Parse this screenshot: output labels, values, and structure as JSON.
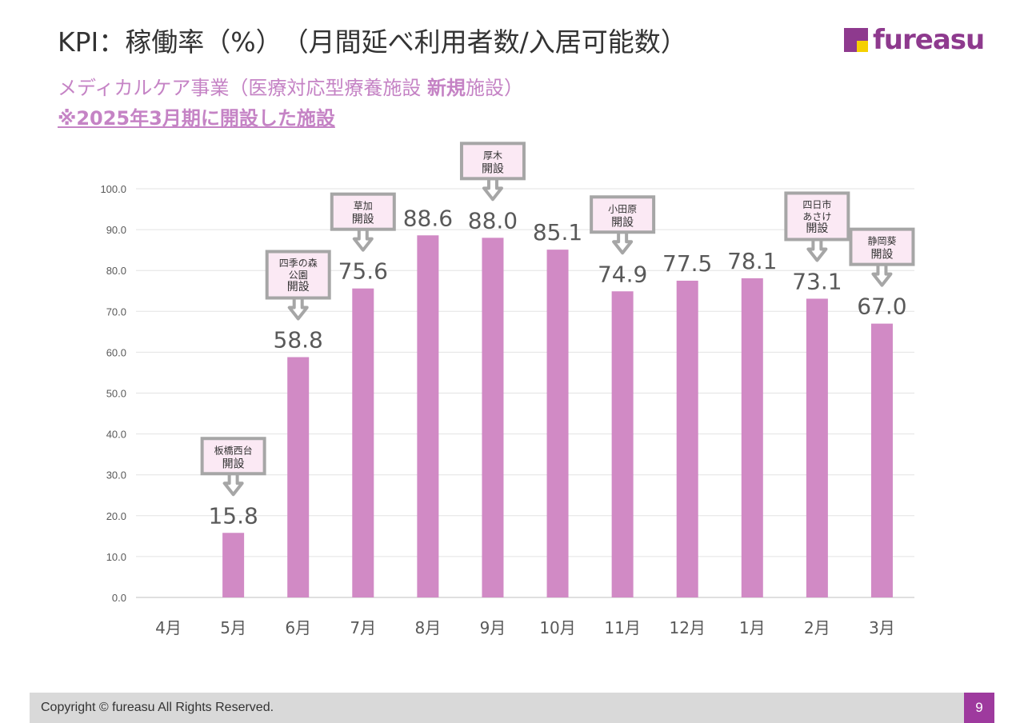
{
  "header": {
    "title": "KPI：稼働率（%）　（月間延べ利用者数/入居可能数）",
    "logo_text": "fureasu",
    "subtitle_pre": "メディカルケア事業（医療対応型療養施設 ",
    "subtitle_bold": "新規",
    "subtitle_post": "施設）",
    "note": "※2025年3月期に開設した施設"
  },
  "chart_data": {
    "type": "bar",
    "categories": [
      "4月",
      "5月",
      "6月",
      "7月",
      "8月",
      "9月",
      "10月",
      "11月",
      "12月",
      "1月",
      "2月",
      "3月"
    ],
    "values": [
      null,
      15.8,
      58.8,
      75.6,
      88.6,
      88.0,
      85.1,
      74.9,
      77.5,
      78.1,
      73.1,
      67.0
    ],
    "ylim": [
      0,
      100
    ],
    "yticks": [
      "0.0",
      "10.0",
      "20.0",
      "30.0",
      "40.0",
      "50.0",
      "60.0",
      "70.0",
      "80.0",
      "90.0",
      "100.0"
    ],
    "grid": true,
    "bar_color": "#d18ac5",
    "annotations": [
      {
        "category": "5月",
        "lines": [
          "板橋西台",
          "開設"
        ]
      },
      {
        "category": "6月",
        "lines": [
          "四季の森",
          "公園",
          "開設"
        ]
      },
      {
        "category": "7月",
        "lines": [
          "草加",
          "開設"
        ]
      },
      {
        "category": "9月",
        "lines": [
          "厚木",
          "開設"
        ]
      },
      {
        "category": "11月",
        "lines": [
          "小田原",
          "開設"
        ]
      },
      {
        "category": "2月",
        "lines": [
          "四日市",
          "あさけ",
          "開設"
        ]
      },
      {
        "category": "3月",
        "lines": [
          "静岡葵",
          "開設"
        ]
      }
    ]
  },
  "footer": {
    "copyright": "Copyright © fureasu All Rights Reserved.",
    "page_number": "9"
  }
}
